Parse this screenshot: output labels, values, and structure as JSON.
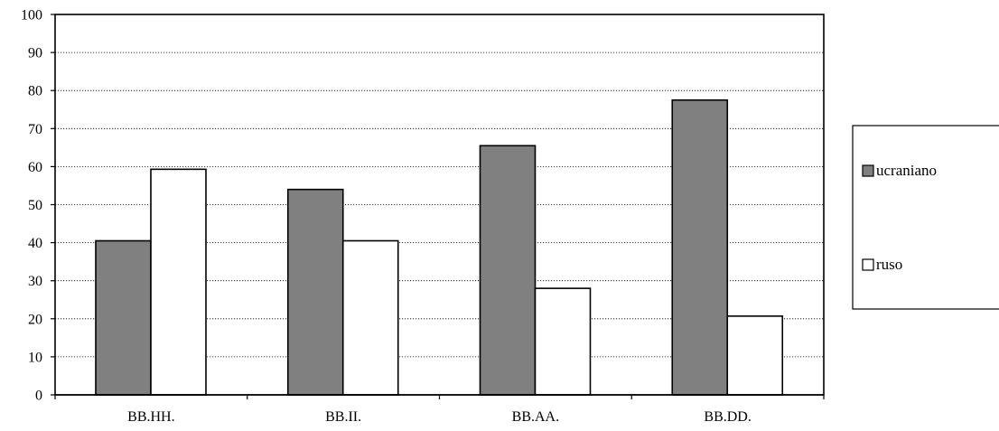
{
  "chart_data": {
    "type": "bar",
    "title": "",
    "xlabel": "",
    "ylabel": "",
    "categories": [
      "BB.HH.",
      "BB.II.",
      "BB.AA.",
      "BB.DD."
    ],
    "series": [
      {
        "name": "ucraniano",
        "values": [
          40.5,
          54,
          65.5,
          77.5
        ],
        "color": "#808080"
      },
      {
        "name": "ruso",
        "values": [
          59.3,
          40.5,
          28,
          20.7
        ],
        "color": "#ffffff"
      }
    ],
    "ylim": [
      0,
      100
    ],
    "yticks": [
      0,
      10,
      20,
      30,
      40,
      50,
      60,
      70,
      80,
      90,
      100
    ],
    "grid": "horizontal dotted",
    "legend_position": "right"
  }
}
